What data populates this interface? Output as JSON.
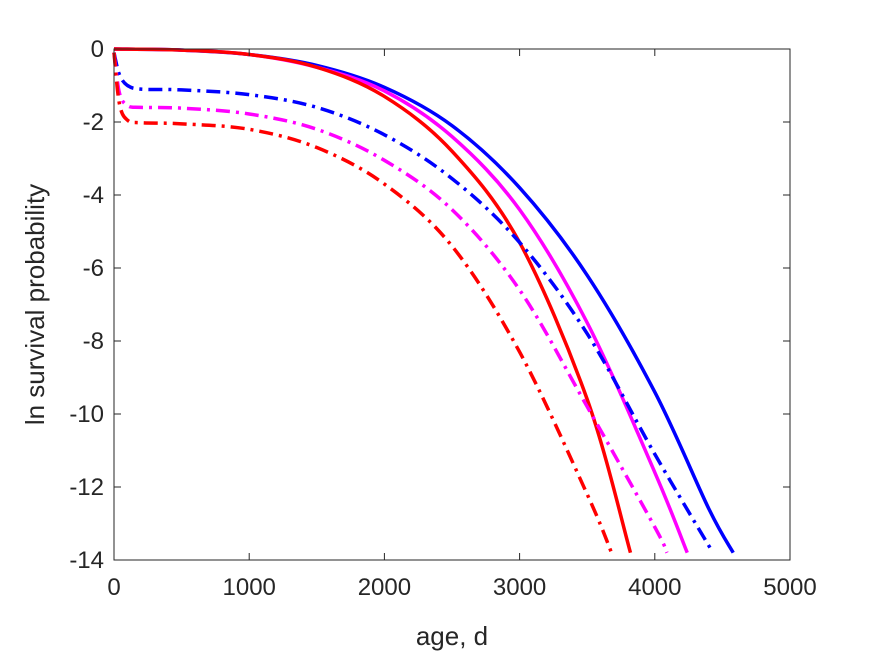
{
  "chart_data": {
    "type": "line",
    "xlabel": "age, d",
    "ylabel": "ln survival probability",
    "xlim": [
      0,
      5000
    ],
    "ylim": [
      -14,
      0
    ],
    "xticks": [
      0,
      1000,
      2000,
      3000,
      4000,
      5000
    ],
    "yticks": [
      0,
      -2,
      -4,
      -6,
      -8,
      -10,
      -12,
      -14
    ],
    "grid": false,
    "legend": "none",
    "series": [
      {
        "color": "#0000ff",
        "dash": "solid",
        "x": [
          0,
          500,
          1000,
          1500,
          2000,
          2500,
          3000,
          3500,
          4000,
          4400,
          4580
        ],
        "y": [
          0,
          -0.03,
          -0.15,
          -0.45,
          -1.05,
          -2.1,
          -3.8,
          -6.2,
          -9.4,
          -12.6,
          -13.8
        ]
      },
      {
        "color": "#ff00ff",
        "dash": "solid",
        "x": [
          0,
          500,
          1000,
          1500,
          2000,
          2500,
          3000,
          3500,
          4000,
          4240
        ],
        "y": [
          0,
          -0.03,
          -0.15,
          -0.5,
          -1.15,
          -2.4,
          -4.4,
          -7.5,
          -11.6,
          -13.8
        ]
      },
      {
        "color": "#ff0000",
        "dash": "solid",
        "x": [
          0,
          500,
          1000,
          1500,
          2000,
          2500,
          3000,
          3500,
          3820
        ],
        "y": [
          0,
          -0.03,
          -0.15,
          -0.5,
          -1.3,
          -2.8,
          -5.3,
          -9.6,
          -13.8
        ]
      },
      {
        "color": "#0000ff",
        "dash": "dashdot",
        "x": [
          0,
          40,
          100,
          200,
          500,
          1000,
          1500,
          2000,
          2500,
          3000,
          3500,
          4000,
          4430
        ],
        "y": [
          -0.1,
          -0.7,
          -1.0,
          -1.1,
          -1.12,
          -1.25,
          -1.6,
          -2.35,
          -3.55,
          -5.3,
          -7.8,
          -11.1,
          -13.8
        ]
      },
      {
        "color": "#ff00ff",
        "dash": "dashdot",
        "x": [
          0,
          40,
          100,
          200,
          500,
          1000,
          1500,
          2000,
          2500,
          3000,
          3500,
          4000,
          4090
        ],
        "y": [
          -0.1,
          -1.2,
          -1.55,
          -1.6,
          -1.62,
          -1.78,
          -2.2,
          -3.05,
          -4.4,
          -6.6,
          -9.8,
          -13.1,
          -13.8
        ]
      },
      {
        "color": "#ff0000",
        "dash": "dashdot",
        "x": [
          0,
          40,
          100,
          200,
          500,
          1000,
          1500,
          2000,
          2500,
          3000,
          3500,
          3680
        ],
        "y": [
          -0.1,
          -1.5,
          -1.95,
          -2.02,
          -2.05,
          -2.2,
          -2.7,
          -3.7,
          -5.4,
          -8.3,
          -12.2,
          -13.8
        ]
      }
    ]
  }
}
